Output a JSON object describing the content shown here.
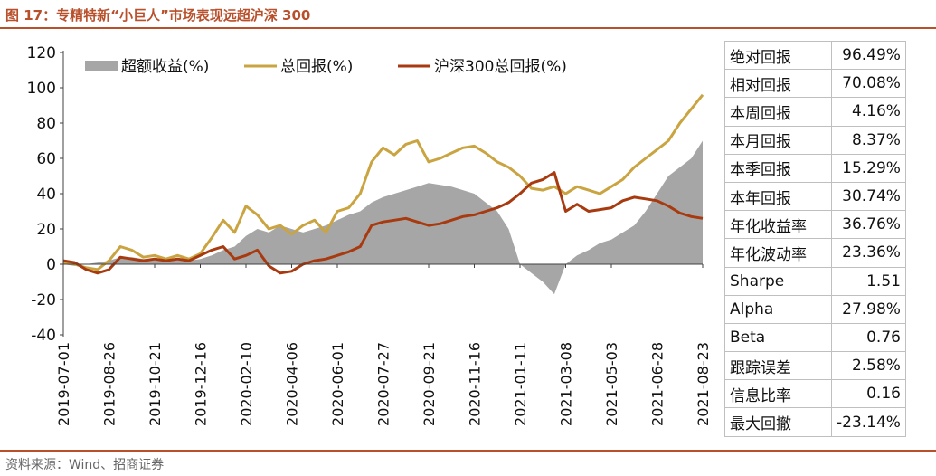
{
  "title": "图 17：专精特新“小巨人”市场表现远超沪深 300",
  "source": "资料来源：Wind、招商证券",
  "chart_data": {
    "type": "line",
    "ylim": [
      -40,
      120
    ],
    "yticks": [
      "-40",
      "-20",
      "0",
      "20",
      "40",
      "60",
      "80",
      "100",
      "120"
    ],
    "ytick_values": [
      -40,
      -20,
      0,
      20,
      40,
      60,
      80,
      100,
      120
    ],
    "x_start": "2019-07-01",
    "x_end": "2021-08-23",
    "xticks": [
      "2019-07-01",
      "2019-08-26",
      "2019-10-21",
      "2019-12-16",
      "2020-02-10",
      "2020-04-06",
      "2020-06-01",
      "2020-07-27",
      "2020-09-21",
      "2020-11-16",
      "2021-01-11",
      "2021-03-08",
      "2021-05-03",
      "2021-06-28",
      "2021-08-23"
    ],
    "legend": [
      "超额收益(%)",
      "总回报(%)",
      "沪深300总回报(%)"
    ],
    "legend_position": "top",
    "colors": {
      "excess": "#a6a6a6",
      "total": "#c9a441",
      "hs300": "#a83a10"
    },
    "series": [
      {
        "name": "超额收益(%)",
        "style": "area",
        "color": "#a6a6a6",
        "points": [
          [
            "2019-07-01",
            0
          ],
          [
            "2019-07-15",
            -1
          ],
          [
            "2019-07-29",
            0
          ],
          [
            "2019-08-12",
            1
          ],
          [
            "2019-08-26",
            2
          ],
          [
            "2019-09-09",
            4
          ],
          [
            "2019-09-23",
            4
          ],
          [
            "2019-10-07",
            3
          ],
          [
            "2019-10-21",
            3
          ],
          [
            "2019-11-04",
            2
          ],
          [
            "2019-11-18",
            3
          ],
          [
            "2019-12-02",
            2
          ],
          [
            "2019-12-16",
            3
          ],
          [
            "2019-12-30",
            5
          ],
          [
            "2020-01-13",
            8
          ],
          [
            "2020-01-27",
            10
          ],
          [
            "2020-02-10",
            16
          ],
          [
            "2020-02-24",
            20
          ],
          [
            "2020-03-09",
            18
          ],
          [
            "2020-03-23",
            22
          ],
          [
            "2020-04-06",
            20
          ],
          [
            "2020-04-20",
            18
          ],
          [
            "2020-05-04",
            20
          ],
          [
            "2020-05-18",
            22
          ],
          [
            "2020-06-01",
            25
          ],
          [
            "2020-06-15",
            28
          ],
          [
            "2020-06-29",
            30
          ],
          [
            "2020-07-13",
            35
          ],
          [
            "2020-07-27",
            38
          ],
          [
            "2020-08-10",
            40
          ],
          [
            "2020-08-24",
            42
          ],
          [
            "2020-09-07",
            44
          ],
          [
            "2020-09-21",
            46
          ],
          [
            "2020-10-05",
            45
          ],
          [
            "2020-10-19",
            44
          ],
          [
            "2020-11-02",
            42
          ],
          [
            "2020-11-16",
            40
          ],
          [
            "2020-11-30",
            35
          ],
          [
            "2020-12-14",
            30
          ],
          [
            "2020-12-28",
            20
          ],
          [
            "2021-01-11",
            0
          ],
          [
            "2021-01-25",
            -5
          ],
          [
            "2021-02-08",
            -10
          ],
          [
            "2021-02-22",
            -17
          ],
          [
            "2021-03-08",
            0
          ],
          [
            "2021-03-22",
            5
          ],
          [
            "2021-04-05",
            8
          ],
          [
            "2021-04-19",
            12
          ],
          [
            "2021-05-03",
            14
          ],
          [
            "2021-05-17",
            18
          ],
          [
            "2021-05-31",
            22
          ],
          [
            "2021-06-14",
            30
          ],
          [
            "2021-06-28",
            40
          ],
          [
            "2021-07-12",
            50
          ],
          [
            "2021-07-26",
            55
          ],
          [
            "2021-08-09",
            60
          ],
          [
            "2021-08-23",
            70
          ]
        ]
      },
      {
        "name": "总回报(%)",
        "style": "line",
        "color": "#c9a441",
        "points": [
          [
            "2019-07-01",
            1
          ],
          [
            "2019-07-15",
            0
          ],
          [
            "2019-07-29",
            -2
          ],
          [
            "2019-08-12",
            -3
          ],
          [
            "2019-08-26",
            2
          ],
          [
            "2019-09-09",
            10
          ],
          [
            "2019-09-23",
            8
          ],
          [
            "2019-10-07",
            4
          ],
          [
            "2019-10-21",
            5
          ],
          [
            "2019-11-04",
            3
          ],
          [
            "2019-11-18",
            5
          ],
          [
            "2019-12-02",
            3
          ],
          [
            "2019-12-16",
            6
          ],
          [
            "2019-12-30",
            15
          ],
          [
            "2020-01-13",
            25
          ],
          [
            "2020-01-27",
            18
          ],
          [
            "2020-02-10",
            33
          ],
          [
            "2020-02-24",
            28
          ],
          [
            "2020-03-09",
            20
          ],
          [
            "2020-03-23",
            22
          ],
          [
            "2020-04-06",
            17
          ],
          [
            "2020-04-20",
            22
          ],
          [
            "2020-05-04",
            25
          ],
          [
            "2020-05-18",
            18
          ],
          [
            "2020-06-01",
            30
          ],
          [
            "2020-06-15",
            32
          ],
          [
            "2020-06-29",
            40
          ],
          [
            "2020-07-13",
            58
          ],
          [
            "2020-07-27",
            66
          ],
          [
            "2020-08-10",
            62
          ],
          [
            "2020-08-24",
            68
          ],
          [
            "2020-09-07",
            70
          ],
          [
            "2020-09-21",
            58
          ],
          [
            "2020-10-05",
            60
          ],
          [
            "2020-10-19",
            63
          ],
          [
            "2020-11-02",
            66
          ],
          [
            "2020-11-16",
            67
          ],
          [
            "2020-11-30",
            63
          ],
          [
            "2020-12-14",
            58
          ],
          [
            "2020-12-28",
            55
          ],
          [
            "2021-01-11",
            50
          ],
          [
            "2021-01-25",
            43
          ],
          [
            "2021-02-08",
            42
          ],
          [
            "2021-02-22",
            44
          ],
          [
            "2021-03-08",
            40
          ],
          [
            "2021-03-22",
            44
          ],
          [
            "2021-04-05",
            42
          ],
          [
            "2021-04-19",
            40
          ],
          [
            "2021-05-03",
            44
          ],
          [
            "2021-05-17",
            48
          ],
          [
            "2021-05-31",
            55
          ],
          [
            "2021-06-14",
            60
          ],
          [
            "2021-06-28",
            65
          ],
          [
            "2021-07-12",
            70
          ],
          [
            "2021-07-26",
            80
          ],
          [
            "2021-08-09",
            88
          ],
          [
            "2021-08-23",
            96
          ]
        ]
      },
      {
        "name": "沪深300总回报(%)",
        "style": "line",
        "color": "#a83a10",
        "points": [
          [
            "2019-07-01",
            2
          ],
          [
            "2019-07-15",
            1
          ],
          [
            "2019-07-29",
            -3
          ],
          [
            "2019-08-12",
            -5
          ],
          [
            "2019-08-26",
            -3
          ],
          [
            "2019-09-09",
            4
          ],
          [
            "2019-09-23",
            3
          ],
          [
            "2019-10-07",
            2
          ],
          [
            "2019-10-21",
            3
          ],
          [
            "2019-11-04",
            2
          ],
          [
            "2019-11-18",
            3
          ],
          [
            "2019-12-02",
            2
          ],
          [
            "2019-12-16",
            5
          ],
          [
            "2019-12-30",
            8
          ],
          [
            "2020-01-13",
            10
          ],
          [
            "2020-01-27",
            3
          ],
          [
            "2020-02-10",
            5
          ],
          [
            "2020-02-24",
            8
          ],
          [
            "2020-03-09",
            -1
          ],
          [
            "2020-03-23",
            -5
          ],
          [
            "2020-04-06",
            -4
          ],
          [
            "2020-04-20",
            0
          ],
          [
            "2020-05-04",
            2
          ],
          [
            "2020-05-18",
            3
          ],
          [
            "2020-06-01",
            5
          ],
          [
            "2020-06-15",
            7
          ],
          [
            "2020-06-29",
            10
          ],
          [
            "2020-07-13",
            22
          ],
          [
            "2020-07-27",
            24
          ],
          [
            "2020-08-10",
            25
          ],
          [
            "2020-08-24",
            26
          ],
          [
            "2020-09-07",
            24
          ],
          [
            "2020-09-21",
            22
          ],
          [
            "2020-10-05",
            23
          ],
          [
            "2020-10-19",
            25
          ],
          [
            "2020-11-02",
            27
          ],
          [
            "2020-11-16",
            28
          ],
          [
            "2020-11-30",
            30
          ],
          [
            "2020-12-14",
            32
          ],
          [
            "2020-12-28",
            35
          ],
          [
            "2021-01-11",
            40
          ],
          [
            "2021-01-25",
            46
          ],
          [
            "2021-02-08",
            48
          ],
          [
            "2021-02-22",
            52
          ],
          [
            "2021-03-08",
            30
          ],
          [
            "2021-03-22",
            34
          ],
          [
            "2021-04-05",
            30
          ],
          [
            "2021-04-19",
            31
          ],
          [
            "2021-05-03",
            32
          ],
          [
            "2021-05-17",
            36
          ],
          [
            "2021-05-31",
            38
          ],
          [
            "2021-06-14",
            37
          ],
          [
            "2021-06-28",
            36
          ],
          [
            "2021-07-12",
            33
          ],
          [
            "2021-07-26",
            29
          ],
          [
            "2021-08-09",
            27
          ],
          [
            "2021-08-23",
            26
          ]
        ]
      }
    ]
  },
  "stats": [
    {
      "label": "绝对回报",
      "value": "96.49%"
    },
    {
      "label": "相对回报",
      "value": "70.08%"
    },
    {
      "label": "本周回报",
      "value": "4.16%"
    },
    {
      "label": "本月回报",
      "value": "8.37%"
    },
    {
      "label": "本季回报",
      "value": "15.29%"
    },
    {
      "label": "本年回报",
      "value": "30.74%"
    },
    {
      "label": "年化收益率",
      "value": "36.76%"
    },
    {
      "label": "年化波动率",
      "value": "23.36%"
    },
    {
      "label": "Sharpe",
      "value": "1.51"
    },
    {
      "label": "Alpha",
      "value": "27.98%"
    },
    {
      "label": "Beta",
      "value": "0.76"
    },
    {
      "label": "跟踪误差",
      "value": "2.58%"
    },
    {
      "label": "信息比率",
      "value": "0.16"
    },
    {
      "label": "最大回撤",
      "value": "-23.14%"
    }
  ]
}
